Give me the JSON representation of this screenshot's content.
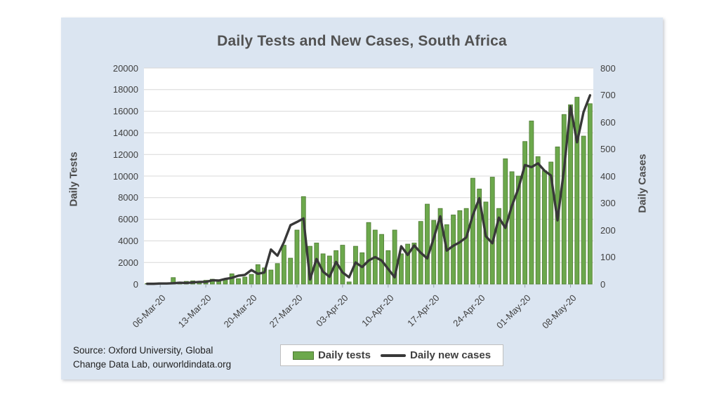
{
  "card": {
    "background": "#dbe5f1"
  },
  "chart_data": {
    "type": "bar+line",
    "title": "Daily Tests and New Cases, South Africa",
    "grid": true,
    "legend_position": "bottom",
    "y_left": {
      "label": "Daily Tests",
      "min": 0,
      "max": 20000,
      "step": 2000
    },
    "y_right": {
      "label": "Daily Cases",
      "min": 0,
      "max": 800,
      "step": 100
    },
    "x_tick_labels": [
      "06-Mar-20",
      "13-Mar-20",
      "20-Mar-20",
      "27-Mar-20",
      "03-Apr-20",
      "10-Apr-20",
      "17-Apr-20",
      "24-Apr-20",
      "01-May-20",
      "08-May-20"
    ],
    "x_tick_indices": [
      2,
      9,
      16,
      23,
      30,
      37,
      44,
      51,
      58,
      65
    ],
    "colors": {
      "bar_fill": "#6ca84c",
      "bar_border": "#4e7a33",
      "line": "#383838",
      "grid": "#d8d8d8"
    },
    "series": [
      {
        "name": "Daily tests",
        "type": "bar",
        "axis": "left",
        "values": [
          50,
          80,
          120,
          100,
          600,
          200,
          250,
          300,
          250,
          350,
          450,
          300,
          400,
          950,
          500,
          650,
          900,
          1800,
          1500,
          1300,
          1900,
          3600,
          2400,
          5000,
          8100,
          3500,
          3800,
          2800,
          2600,
          3100,
          3600,
          200,
          3500,
          2900,
          5700,
          5000,
          4600,
          3100,
          5000,
          2800,
          3700,
          3800,
          5800,
          7400,
          5900,
          7000,
          5500,
          6400,
          6800,
          7000,
          9800,
          8800,
          7600,
          9900,
          7000,
          11600,
          10400,
          10000,
          13200,
          15100,
          11800,
          10500,
          11300,
          12700,
          15700,
          16600,
          17300,
          13700,
          16700
        ]
      },
      {
        "name": "Daily new cases",
        "type": "line",
        "axis": "right",
        "values": [
          1,
          1,
          2,
          2,
          3,
          5,
          4,
          6,
          8,
          8,
          14,
          13,
          19,
          23,
          31,
          34,
          52,
          38,
          43,
          128,
          105,
          155,
          218,
          230,
          243,
          17,
          93,
          46,
          27,
          82,
          43,
          25,
          80,
          63,
          87,
          100,
          87,
          56,
          25,
          140,
          108,
          143,
          116,
          95,
          170,
          251,
          124,
          142,
          155,
          173,
          255,
          318,
          177,
          151,
          246,
          208,
          290,
          354,
          441,
          433,
          447,
          420,
          402,
          236,
          424,
          658,
          525,
          637,
          699
        ]
      }
    ]
  },
  "legend": {
    "items": [
      {
        "label": "Daily tests"
      },
      {
        "label": "Daily new cases"
      }
    ]
  },
  "source": {
    "line1": "Source: Oxford University, Global",
    "line2": "Change Data Lab, ourworldindata.org"
  }
}
